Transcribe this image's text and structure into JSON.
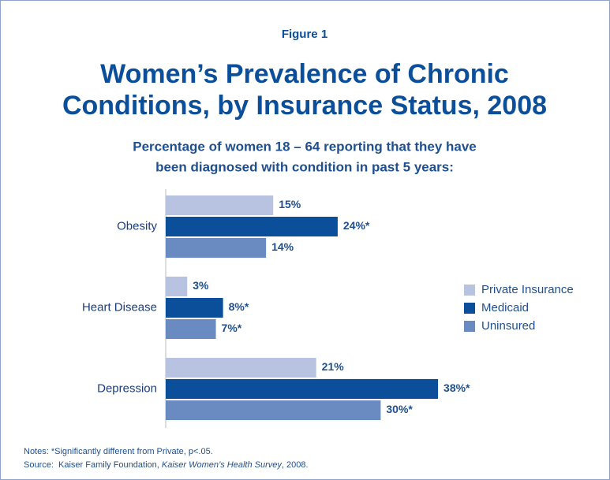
{
  "chart_data": {
    "type": "barh",
    "figure_label": "Figure 1",
    "title": [
      "Women’s Prevalence of Chronic",
      "Conditions, by Insurance Status, 2008"
    ],
    "subtitle": [
      "Percentage of women 18 – 64 reporting that they have",
      "been diagnosed with condition in past 5 years:"
    ],
    "categories": [
      "Obesity",
      "Heart Disease",
      "Depression"
    ],
    "series": [
      {
        "name": "Private Insurance",
        "color": "#b7c3e0",
        "values": [
          15,
          3,
          21
        ],
        "value_labels": [
          "15%",
          "3%",
          "21%"
        ]
      },
      {
        "name": "Medicaid",
        "color": "#0b4f9a",
        "values": [
          24,
          8,
          38
        ],
        "value_labels": [
          "24%*",
          "8%*",
          "38%*"
        ]
      },
      {
        "name": "Uninsured",
        "color": "#6a8bc1",
        "values": [
          14,
          7,
          30
        ],
        "value_labels": [
          "14%",
          "7%*",
          "30%*"
        ]
      }
    ],
    "legend": "right",
    "notes": [
      "Notes: *Significantly different from Private, p<.05."
    ],
    "source": [
      "Source:  Kaiser Family Foundation, ",
      "Kaiser Women’s Health Survey",
      ", 2008."
    ]
  }
}
